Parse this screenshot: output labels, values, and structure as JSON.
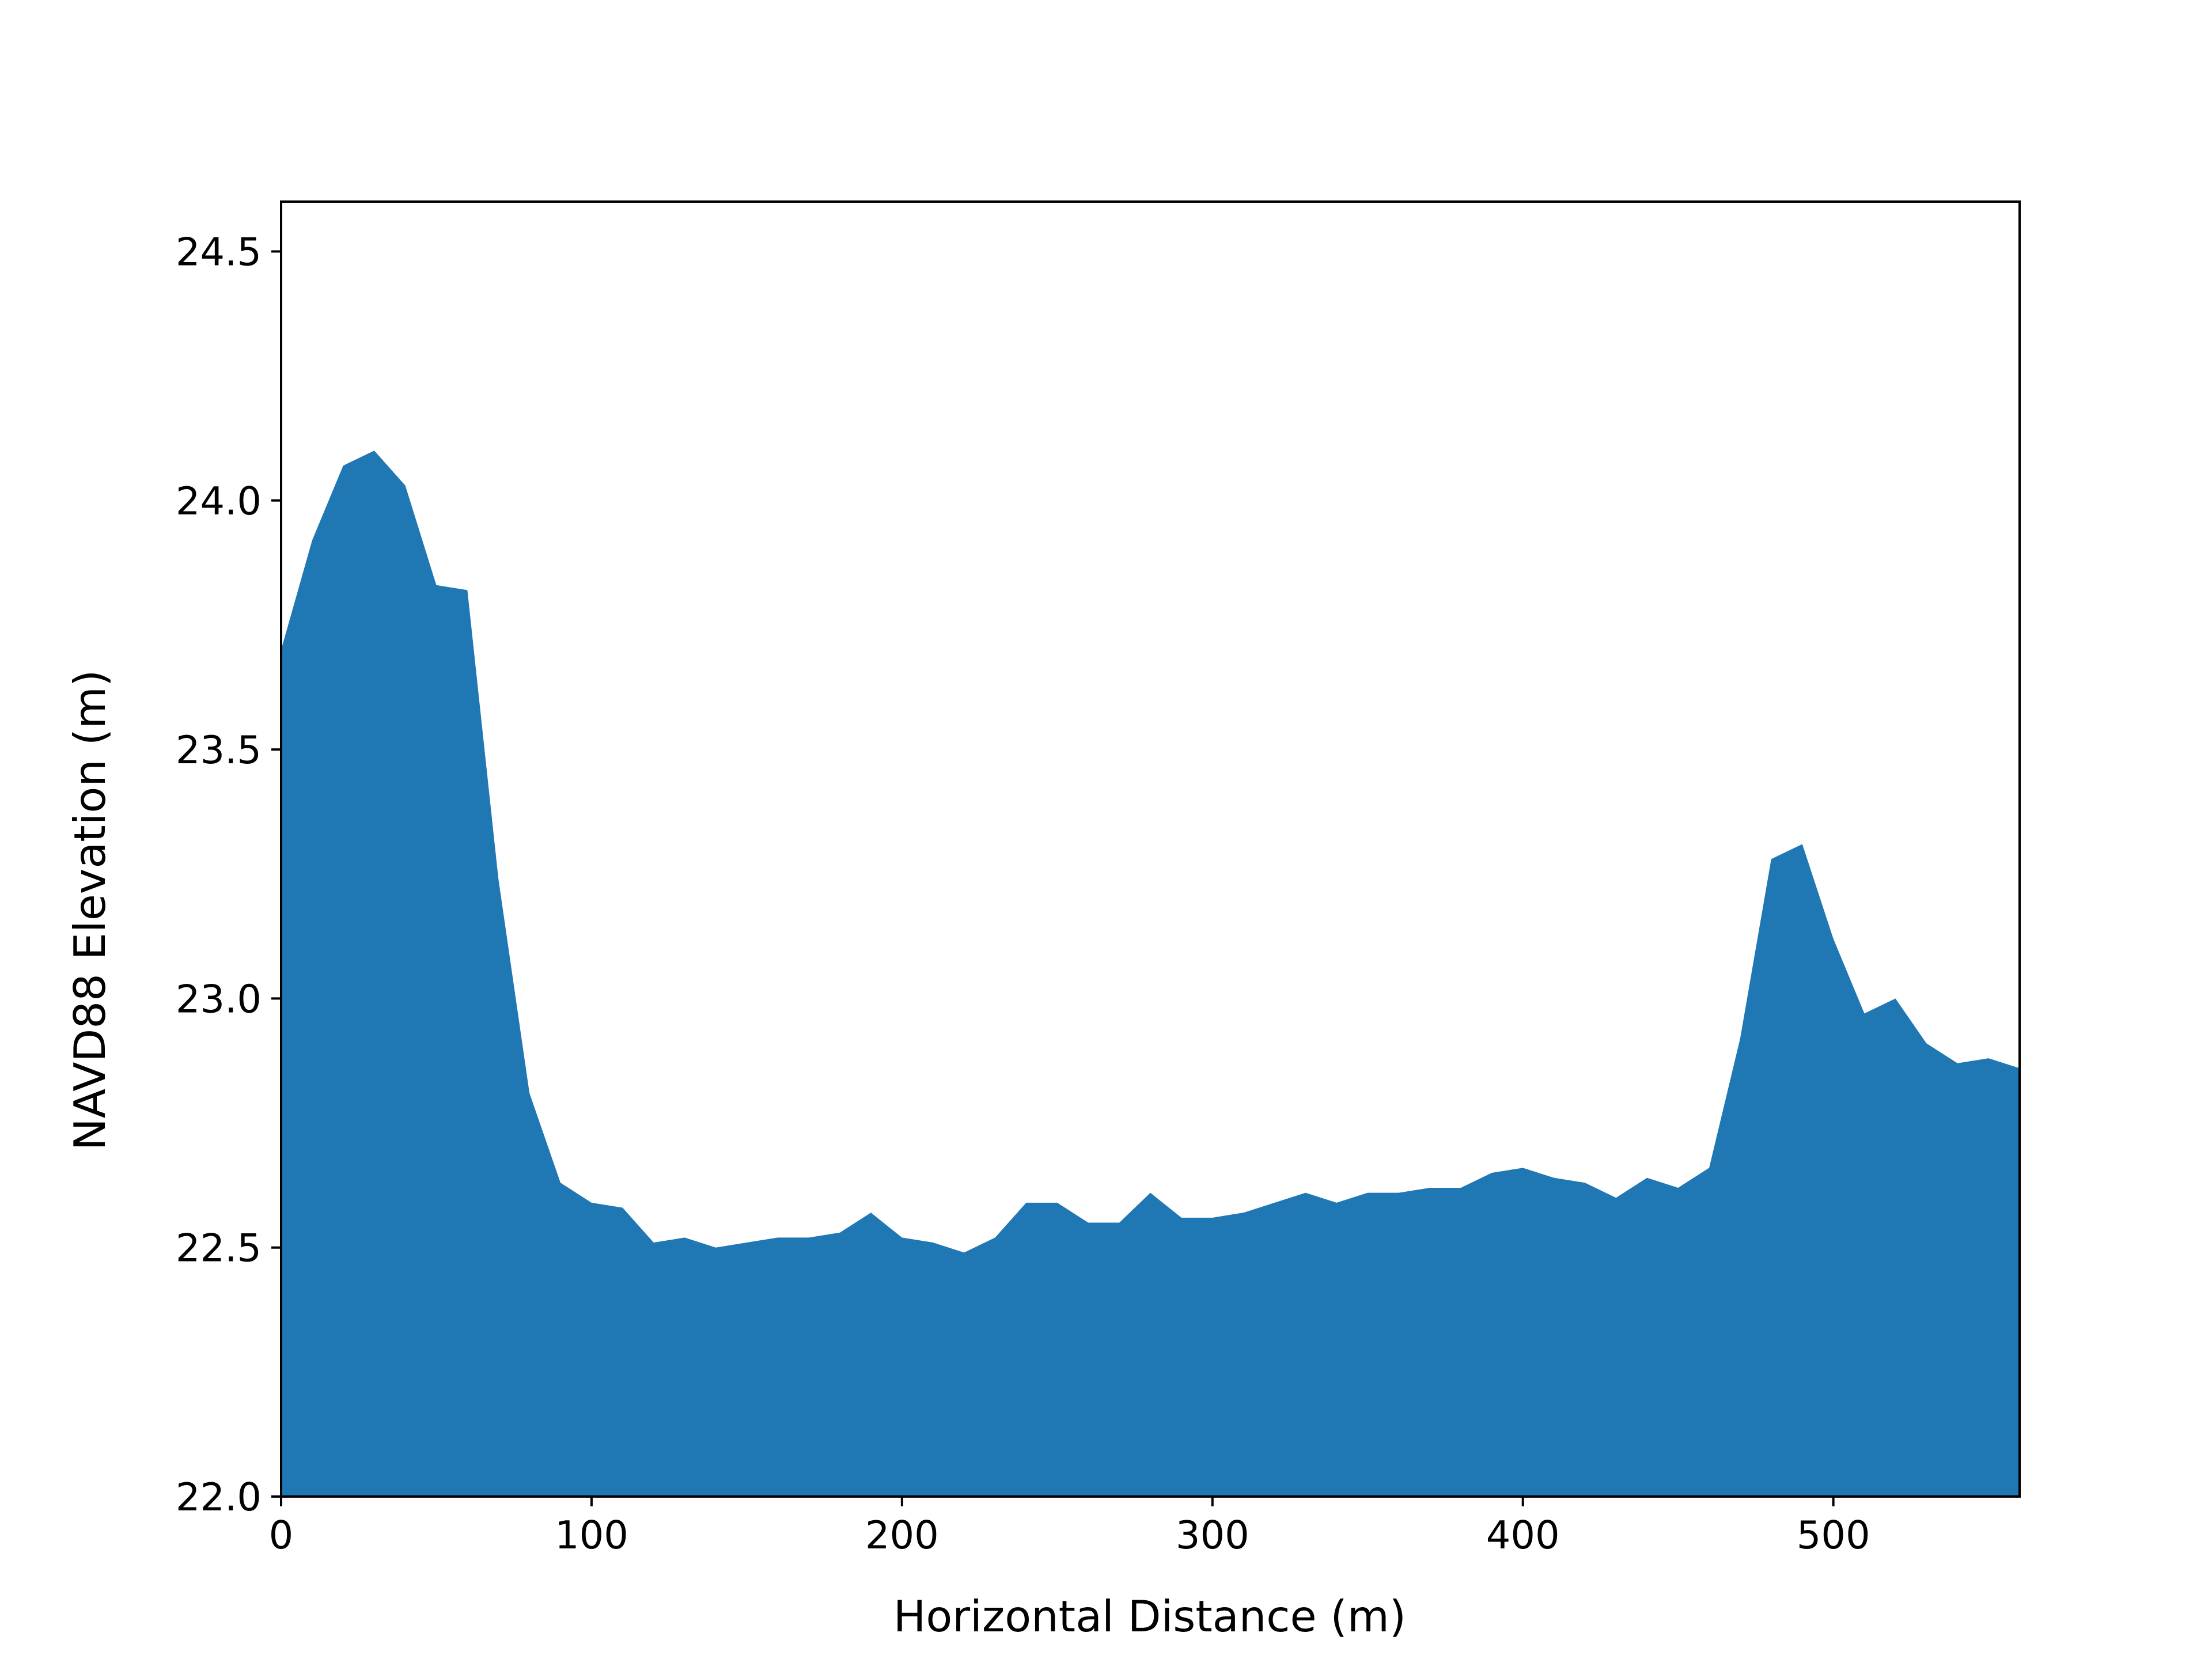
{
  "chart_data": {
    "type": "area",
    "title": "",
    "xlabel": "Horizontal Distance (m)",
    "ylabel": "NAVD88 Elevation (m)",
    "xlim": [
      0,
      560
    ],
    "ylim": [
      22.0,
      24.6
    ],
    "xticks": [
      0,
      100,
      200,
      300,
      400,
      500
    ],
    "xtick_labels": [
      "0",
      "100",
      "200",
      "300",
      "400",
      "500"
    ],
    "yticks": [
      22.0,
      22.5,
      23.0,
      23.5,
      24.0,
      24.5
    ],
    "ytick_labels": [
      "22.0",
      "22.5",
      "23.0",
      "23.5",
      "24.0",
      "24.5"
    ],
    "grid": false,
    "fill_color": "#1f77b4",
    "x": [
      0,
      10,
      20,
      30,
      40,
      50,
      60,
      70,
      80,
      90,
      100,
      110,
      120,
      130,
      140,
      150,
      160,
      170,
      180,
      190,
      200,
      210,
      220,
      230,
      240,
      250,
      260,
      270,
      280,
      290,
      300,
      310,
      320,
      330,
      340,
      350,
      360,
      370,
      380,
      390,
      400,
      410,
      420,
      430,
      440,
      450,
      460,
      470,
      480,
      490,
      500,
      510,
      520,
      530,
      540,
      550,
      560
    ],
    "values": [
      23.7,
      23.92,
      24.07,
      24.1,
      24.03,
      23.83,
      23.82,
      23.24,
      22.81,
      22.63,
      22.59,
      22.58,
      22.51,
      22.52,
      22.5,
      22.51,
      22.52,
      22.52,
      22.53,
      22.57,
      22.52,
      22.51,
      22.49,
      22.52,
      22.59,
      22.59,
      22.55,
      22.55,
      22.61,
      22.56,
      22.56,
      22.57,
      22.59,
      22.61,
      22.59,
      22.61,
      22.61,
      22.62,
      22.62,
      22.65,
      22.66,
      22.64,
      22.63,
      22.6,
      22.64,
      22.62,
      22.66,
      22.92,
      23.28,
      23.31,
      23.12,
      22.97,
      23.0,
      22.91,
      22.87,
      22.88,
      22.86
    ]
  }
}
